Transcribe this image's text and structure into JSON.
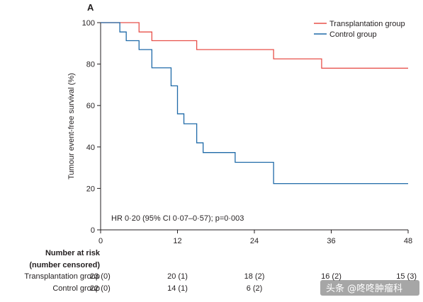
{
  "chart_data": {
    "type": "line",
    "step": true,
    "panel_label": "A",
    "xlabel": "",
    "ylabel": "Tumour event-free survival (%)",
    "xlim": [
      0,
      48
    ],
    "ylim": [
      0,
      100
    ],
    "xticks": [
      0,
      12,
      24,
      36,
      48
    ],
    "yticks": [
      0,
      20,
      40,
      60,
      80,
      100
    ],
    "grid": false,
    "legend_position": "top-right",
    "annotation": "HR 0·20 (95% CI 0·07–0·57); p=0·003",
    "series": [
      {
        "name": "Transplantation group",
        "color": "#e8504a",
        "x": [
          0,
          6,
          8,
          15,
          27,
          34.5,
          48
        ],
        "y": [
          100,
          95.5,
          91.3,
          87,
          82.5,
          78,
          78
        ]
      },
      {
        "name": "Control group",
        "color": "#1f6aa8",
        "x": [
          0,
          3,
          4,
          6,
          8,
          11,
          12,
          13,
          15,
          16,
          21,
          27,
          48
        ],
        "y": [
          100,
          95.5,
          91.3,
          87,
          78.2,
          69.5,
          56,
          51.2,
          42,
          37.3,
          32.6,
          22.3,
          22.3
        ]
      }
    ],
    "risk_table": {
      "title_line1": "Number at risk",
      "title_line2": "(number censored)",
      "rows": [
        {
          "label": "Transplantation group",
          "cells": [
            "23 (0)",
            "20 (1)",
            "18 (2)",
            "16 (2)",
            "15 (3)"
          ]
        },
        {
          "label": "Control group",
          "cells": [
            "22 (0)",
            "14 (1)",
            "6 (2)",
            "",
            ""
          ]
        }
      ],
      "cell_x": [
        0,
        12,
        24,
        36,
        48
      ]
    }
  },
  "watermark": {
    "text": "头条 @咚咚肿瘤科"
  },
  "colors": {
    "axis": "#231f20",
    "text": "#231f20"
  }
}
